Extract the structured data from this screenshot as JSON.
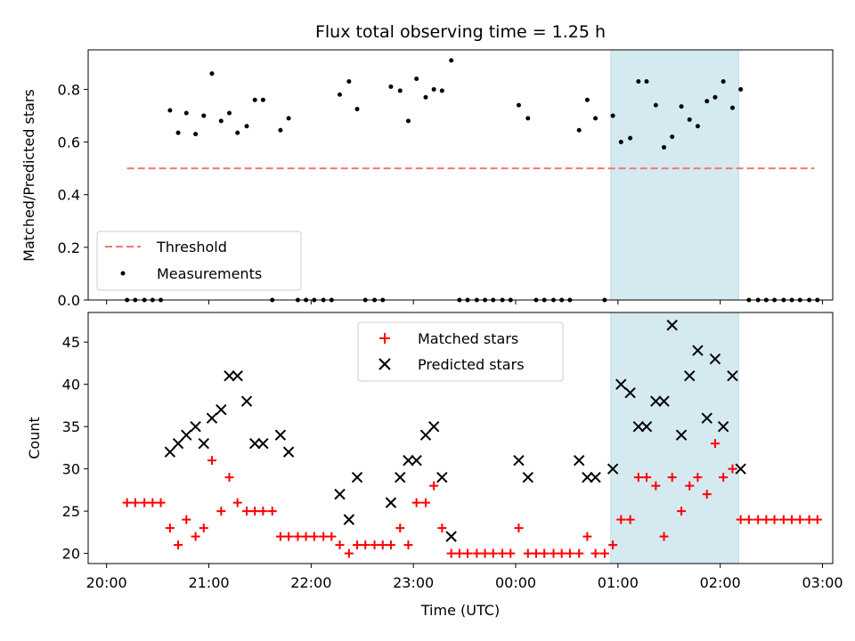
{
  "chart_data": [
    {
      "type": "scatter",
      "title": "Flux total observing time = 1.25 h",
      "ylabel": "Matched/Predicted stars",
      "ylim": [
        0,
        0.95
      ],
      "xlim": [
        19.82,
        27.1
      ],
      "yticks": [
        0.0,
        0.2,
        0.4,
        0.6,
        0.8
      ],
      "ytick_labels": [
        "0.0",
        "0.2",
        "0.4",
        "0.6",
        "0.8"
      ],
      "shaded_region": {
        "x": [
          24.93,
          26.18
        ],
        "color": "#d4eaf0"
      },
      "threshold": {
        "name": "Threshold",
        "y": 0.5,
        "x": [
          20.2,
          26.92
        ],
        "color": "#f07878"
      },
      "legend": {
        "placement": "lower left",
        "entries": [
          "Threshold",
          "Measurements"
        ]
      },
      "series": [
        {
          "name": "Measurements",
          "color": "#000000",
          "points": [
            [
              20.2,
              0
            ],
            [
              20.28,
              0
            ],
            [
              20.37,
              0
            ],
            [
              20.45,
              0
            ],
            [
              20.53,
              0
            ],
            [
              20.62,
              0.72
            ],
            [
              20.7,
              0.635
            ],
            [
              20.78,
              0.71
            ],
            [
              20.87,
              0.63
            ],
            [
              20.95,
              0.7
            ],
            [
              21.03,
              0.86
            ],
            [
              21.12,
              0.68
            ],
            [
              21.2,
              0.71
            ],
            [
              21.28,
              0.635
            ],
            [
              21.37,
              0.66
            ],
            [
              21.45,
              0.76
            ],
            [
              21.53,
              0.76
            ],
            [
              21.62,
              0
            ],
            [
              21.7,
              0.645
            ],
            [
              21.78,
              0.69
            ],
            [
              21.87,
              0
            ],
            [
              21.95,
              0
            ],
            [
              22.03,
              0
            ],
            [
              22.12,
              0
            ],
            [
              22.2,
              0
            ],
            [
              22.28,
              0.78
            ],
            [
              22.37,
              0.83
            ],
            [
              22.45,
              0.725
            ],
            [
              22.53,
              0
            ],
            [
              22.62,
              0
            ],
            [
              22.7,
              0
            ],
            [
              22.78,
              0.81
            ],
            [
              22.87,
              0.795
            ],
            [
              22.95,
              0.68
            ],
            [
              23.03,
              0.84
            ],
            [
              23.12,
              0.77
            ],
            [
              23.2,
              0.8
            ],
            [
              23.28,
              0.795
            ],
            [
              23.37,
              0.91
            ],
            [
              23.45,
              0
            ],
            [
              23.53,
              0
            ],
            [
              23.62,
              0
            ],
            [
              23.7,
              0
            ],
            [
              23.78,
              0
            ],
            [
              23.87,
              0
            ],
            [
              23.95,
              0
            ],
            [
              24.03,
              0.74
            ],
            [
              24.12,
              0.69
            ],
            [
              24.2,
              0
            ],
            [
              24.28,
              0
            ],
            [
              24.37,
              0
            ],
            [
              24.45,
              0
            ],
            [
              24.53,
              0
            ],
            [
              24.62,
              0.645
            ],
            [
              24.7,
              0.76
            ],
            [
              24.78,
              0.69
            ],
            [
              24.87,
              0
            ],
            [
              24.95,
              0.7
            ],
            [
              25.03,
              0.6
            ],
            [
              25.12,
              0.615
            ],
            [
              25.2,
              0.83
            ],
            [
              25.28,
              0.83
            ],
            [
              25.37,
              0.74
            ],
            [
              25.45,
              0.58
            ],
            [
              25.53,
              0.62
            ],
            [
              25.62,
              0.735
            ],
            [
              25.7,
              0.685
            ],
            [
              25.78,
              0.66
            ],
            [
              25.87,
              0.755
            ],
            [
              25.95,
              0.77
            ],
            [
              26.03,
              0.83
            ],
            [
              26.12,
              0.73
            ],
            [
              26.2,
              0.8
            ],
            [
              26.28,
              0
            ],
            [
              26.37,
              0
            ],
            [
              26.45,
              0
            ],
            [
              26.53,
              0
            ],
            [
              26.62,
              0
            ],
            [
              26.7,
              0
            ],
            [
              26.78,
              0
            ],
            [
              26.87,
              0
            ],
            [
              26.95,
              0
            ]
          ]
        }
      ]
    },
    {
      "type": "scatter",
      "xlabel": "Time (UTC)",
      "ylabel": "Count",
      "ylim": [
        18.8,
        48.5
      ],
      "xlim": [
        19.82,
        27.1
      ],
      "yticks": [
        20,
        25,
        30,
        35,
        40,
        45
      ],
      "ytick_labels": [
        "20",
        "25",
        "30",
        "35",
        "40",
        "45"
      ],
      "xticks": [
        20,
        21,
        22,
        23,
        24,
        25,
        26,
        27
      ],
      "xtick_labels": [
        "20:00",
        "21:00",
        "22:00",
        "23:00",
        "00:00",
        "01:00",
        "02:00",
        "03:00"
      ],
      "shaded_region": {
        "x": [
          24.93,
          26.18
        ],
        "color": "#d4eaf0"
      },
      "legend": {
        "placement": "top-center",
        "entries": [
          "Matched stars",
          "Predicted stars"
        ]
      },
      "series": [
        {
          "name": "Matched stars",
          "marker": "plus",
          "color": "#ff0000",
          "points": [
            [
              20.2,
              26
            ],
            [
              20.28,
              26
            ],
            [
              20.37,
              26
            ],
            [
              20.45,
              26
            ],
            [
              20.53,
              26
            ],
            [
              20.62,
              23
            ],
            [
              20.7,
              21
            ],
            [
              20.78,
              24
            ],
            [
              20.87,
              22
            ],
            [
              20.95,
              23
            ],
            [
              21.03,
              31
            ],
            [
              21.12,
              25
            ],
            [
              21.2,
              29
            ],
            [
              21.28,
              26
            ],
            [
              21.37,
              25
            ],
            [
              21.45,
              25
            ],
            [
              21.53,
              25
            ],
            [
              21.62,
              25
            ],
            [
              21.7,
              22
            ],
            [
              21.78,
              22
            ],
            [
              21.87,
              22
            ],
            [
              21.95,
              22
            ],
            [
              22.03,
              22
            ],
            [
              22.12,
              22
            ],
            [
              22.2,
              22
            ],
            [
              22.28,
              21
            ],
            [
              22.37,
              20
            ],
            [
              22.45,
              21
            ],
            [
              22.53,
              21
            ],
            [
              22.62,
              21
            ],
            [
              22.7,
              21
            ],
            [
              22.78,
              21
            ],
            [
              22.87,
              23
            ],
            [
              22.95,
              21
            ],
            [
              23.03,
              26
            ],
            [
              23.12,
              26
            ],
            [
              23.2,
              28
            ],
            [
              23.28,
              23
            ],
            [
              23.37,
              20
            ],
            [
              23.45,
              20
            ],
            [
              23.53,
              20
            ],
            [
              23.62,
              20
            ],
            [
              23.7,
              20
            ],
            [
              23.78,
              20
            ],
            [
              23.87,
              20
            ],
            [
              23.95,
              20
            ],
            [
              24.03,
              23
            ],
            [
              24.12,
              20
            ],
            [
              24.2,
              20
            ],
            [
              24.28,
              20
            ],
            [
              24.37,
              20
            ],
            [
              24.45,
              20
            ],
            [
              24.53,
              20
            ],
            [
              24.62,
              20
            ],
            [
              24.7,
              22
            ],
            [
              24.78,
              20
            ],
            [
              24.87,
              20
            ],
            [
              24.95,
              21
            ],
            [
              25.03,
              24
            ],
            [
              25.12,
              24
            ],
            [
              25.2,
              29
            ],
            [
              25.28,
              29
            ],
            [
              25.37,
              28
            ],
            [
              25.45,
              22
            ],
            [
              25.53,
              29
            ],
            [
              25.62,
              25
            ],
            [
              25.7,
              28
            ],
            [
              25.78,
              29
            ],
            [
              25.87,
              27
            ],
            [
              25.95,
              33
            ],
            [
              26.03,
              29
            ],
            [
              26.12,
              30
            ],
            [
              26.2,
              24
            ],
            [
              26.28,
              24
            ],
            [
              26.37,
              24
            ],
            [
              26.45,
              24
            ],
            [
              26.53,
              24
            ],
            [
              26.62,
              24
            ],
            [
              26.7,
              24
            ],
            [
              26.78,
              24
            ],
            [
              26.87,
              24
            ],
            [
              26.95,
              24
            ]
          ]
        },
        {
          "name": "Predicted stars",
          "marker": "x",
          "color": "#000000",
          "points": [
            [
              20.62,
              32
            ],
            [
              20.7,
              33
            ],
            [
              20.78,
              34
            ],
            [
              20.87,
              35
            ],
            [
              20.95,
              33
            ],
            [
              21.03,
              36
            ],
            [
              21.12,
              37
            ],
            [
              21.2,
              41
            ],
            [
              21.28,
              41
            ],
            [
              21.37,
              38
            ],
            [
              21.45,
              33
            ],
            [
              21.53,
              33
            ],
            [
              21.7,
              34
            ],
            [
              21.78,
              32
            ],
            [
              22.28,
              27
            ],
            [
              22.37,
              24
            ],
            [
              22.45,
              29
            ],
            [
              22.78,
              26
            ],
            [
              22.87,
              29
            ],
            [
              22.95,
              31
            ],
            [
              23.03,
              31
            ],
            [
              23.12,
              34
            ],
            [
              23.2,
              35
            ],
            [
              23.28,
              29
            ],
            [
              23.37,
              22
            ],
            [
              24.03,
              31
            ],
            [
              24.12,
              29
            ],
            [
              24.62,
              31
            ],
            [
              24.7,
              29
            ],
            [
              24.78,
              29
            ],
            [
              24.95,
              30
            ],
            [
              25.03,
              40
            ],
            [
              25.12,
              39
            ],
            [
              25.2,
              35
            ],
            [
              25.28,
              35
            ],
            [
              25.37,
              38
            ],
            [
              25.45,
              38
            ],
            [
              25.53,
              47
            ],
            [
              25.62,
              34
            ],
            [
              25.7,
              41
            ],
            [
              25.78,
              44
            ],
            [
              25.87,
              36
            ],
            [
              25.95,
              43
            ],
            [
              26.03,
              35
            ],
            [
              26.12,
              41
            ],
            [
              26.2,
              30
            ]
          ]
        }
      ]
    }
  ]
}
